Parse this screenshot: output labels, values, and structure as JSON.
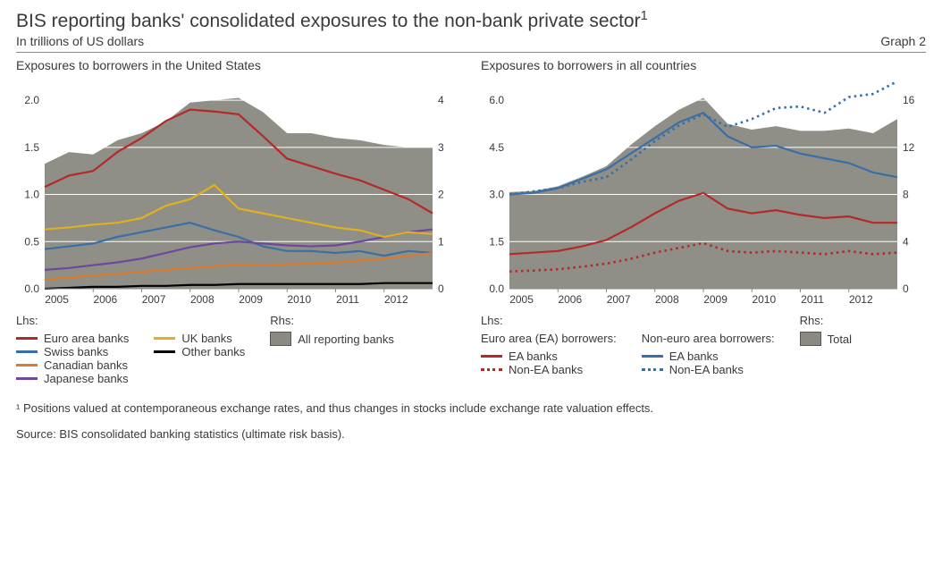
{
  "title": "BIS reporting banks' consolidated exposures to the non-bank private sector",
  "title_sup": "1",
  "subtitle": "In trillions of US dollars",
  "graph_label": "Graph 2",
  "footnote": "¹  Positions valued at contemporaneous exchange rates, and thus changes in stocks include exchange rate valuation effects.",
  "source": "Source: BIS consolidated banking statistics (ultimate risk basis).",
  "colors": {
    "area": "#8f8f87",
    "grid": "#ffffff",
    "axis_text": "#3a3a3a",
    "euro": "#b22a2a",
    "swiss": "#3a6fa6",
    "canadian": "#d97b2f",
    "japanese": "#6b4a9c",
    "uk": "#e0b020",
    "other": "#000000",
    "ea_banks": "#b22a2a",
    "non_ea_banks_ea": "#b22a2a",
    "ea_banks_nonEA": "#3a6fa6",
    "non_ea_banks_nonEA": "#3a6fa6"
  },
  "x_categories": [
    "2005",
    "2006",
    "2007",
    "2008",
    "2009",
    "2010",
    "2011",
    "2012"
  ],
  "x_points_per_year": 2,
  "left": {
    "title": "Exposures to borrowers in the United States",
    "lhs": {
      "min": 0.0,
      "max": 2.2,
      "ticks": [
        0.0,
        0.5,
        1.0,
        1.5,
        2.0
      ]
    },
    "rhs": {
      "min": 0,
      "max": 4.4,
      "ticks": [
        0,
        1,
        2,
        3,
        4
      ]
    },
    "area_series": [
      2.65,
      2.9,
      2.85,
      3.15,
      3.3,
      3.55,
      3.95,
      4.0,
      4.05,
      3.75,
      3.3,
      3.3,
      3.2,
      3.15,
      3.05,
      3.0,
      3.0
    ],
    "lines": [
      {
        "key": "euro",
        "label": "Euro area banks",
        "color": "#b22a2a",
        "values": [
          1.08,
          1.2,
          1.25,
          1.45,
          1.6,
          1.78,
          1.9,
          1.88,
          1.85,
          1.62,
          1.38,
          1.3,
          1.22,
          1.15,
          1.05,
          0.95,
          0.8
        ]
      },
      {
        "key": "swiss",
        "label": "Swiss banks",
        "color": "#3a6fa6",
        "values": [
          0.42,
          0.45,
          0.48,
          0.55,
          0.6,
          0.65,
          0.7,
          0.62,
          0.55,
          0.45,
          0.4,
          0.4,
          0.38,
          0.4,
          0.35,
          0.4,
          0.38
        ]
      },
      {
        "key": "canadian",
        "label": "Canadian banks",
        "color": "#d97b2f",
        "values": [
          0.1,
          0.12,
          0.14,
          0.16,
          0.18,
          0.2,
          0.22,
          0.24,
          0.26,
          0.25,
          0.26,
          0.27,
          0.28,
          0.3,
          0.32,
          0.35,
          0.38
        ]
      },
      {
        "key": "japanese",
        "label": "Japanese banks",
        "color": "#6b4a9c",
        "values": [
          0.2,
          0.22,
          0.25,
          0.28,
          0.32,
          0.38,
          0.44,
          0.48,
          0.5,
          0.48,
          0.46,
          0.45,
          0.46,
          0.5,
          0.55,
          0.6,
          0.63
        ]
      },
      {
        "key": "uk",
        "label": "UK banks",
        "color": "#e0b020",
        "values": [
          0.63,
          0.65,
          0.68,
          0.7,
          0.75,
          0.88,
          0.95,
          1.1,
          0.85,
          0.8,
          0.75,
          0.7,
          0.65,
          0.62,
          0.55,
          0.6,
          0.58
        ]
      },
      {
        "key": "other",
        "label": "Other banks",
        "color": "#000000",
        "values": [
          0.0,
          0.01,
          0.02,
          0.02,
          0.03,
          0.03,
          0.04,
          0.04,
          0.05,
          0.05,
          0.05,
          0.05,
          0.05,
          0.05,
          0.06,
          0.06,
          0.06
        ]
      }
    ],
    "legend_lhs": "Lhs:",
    "legend_rhs": "Rhs:",
    "legend_rhs_item": "All reporting banks"
  },
  "right": {
    "title": "Exposures to borrowers in all countries",
    "lhs": {
      "min": 0.0,
      "max": 6.6,
      "ticks": [
        0.0,
        1.5,
        3.0,
        4.5,
        6.0
      ]
    },
    "rhs": {
      "min": 0,
      "max": 17.6,
      "ticks": [
        0,
        4,
        8,
        12,
        16
      ]
    },
    "area_series": [
      8.2,
      8.3,
      8.7,
      9.5,
      10.4,
      12.2,
      13.8,
      15.2,
      16.2,
      14.0,
      13.5,
      13.8,
      13.4,
      13.4,
      13.6,
      13.2,
      14.4
    ],
    "lines": [
      {
        "key": "ea_ea",
        "label": "EA banks",
        "color": "#b22a2a",
        "dashed": false,
        "values": [
          1.1,
          1.15,
          1.2,
          1.35,
          1.55,
          1.95,
          2.4,
          2.8,
          3.05,
          2.55,
          2.4,
          2.5,
          2.35,
          2.25,
          2.3,
          2.1,
          2.1
        ]
      },
      {
        "key": "nonea_ea",
        "label": "Non-EA banks",
        "color": "#b22a2a",
        "dashed": true,
        "values": [
          0.55,
          0.58,
          0.62,
          0.7,
          0.8,
          0.95,
          1.15,
          1.3,
          1.45,
          1.2,
          1.15,
          1.2,
          1.15,
          1.1,
          1.2,
          1.1,
          1.15
        ]
      },
      {
        "key": "ea_nonea",
        "label": "EA banks",
        "color": "#3a6fa6",
        "dashed": false,
        "values": [
          3.0,
          3.05,
          3.2,
          3.5,
          3.8,
          4.3,
          4.8,
          5.3,
          5.6,
          4.85,
          4.5,
          4.55,
          4.3,
          4.15,
          4.0,
          3.7,
          3.55
        ]
      },
      {
        "key": "nonea_nonea",
        "label": "Non-EA banks",
        "color": "#3a6fa6",
        "dashed": true,
        "values": [
          3.0,
          3.1,
          3.2,
          3.4,
          3.55,
          4.1,
          4.7,
          5.2,
          5.55,
          5.15,
          5.4,
          5.75,
          5.8,
          5.6,
          6.1,
          6.2,
          6.6
        ]
      }
    ],
    "legend_lhs": "Lhs:",
    "legend_rhs": "Rhs:",
    "legend_rhs_item": "Total",
    "legend_group1": "Euro area (EA) borrowers:",
    "legend_group2": "Non-euro area borrowers:"
  }
}
